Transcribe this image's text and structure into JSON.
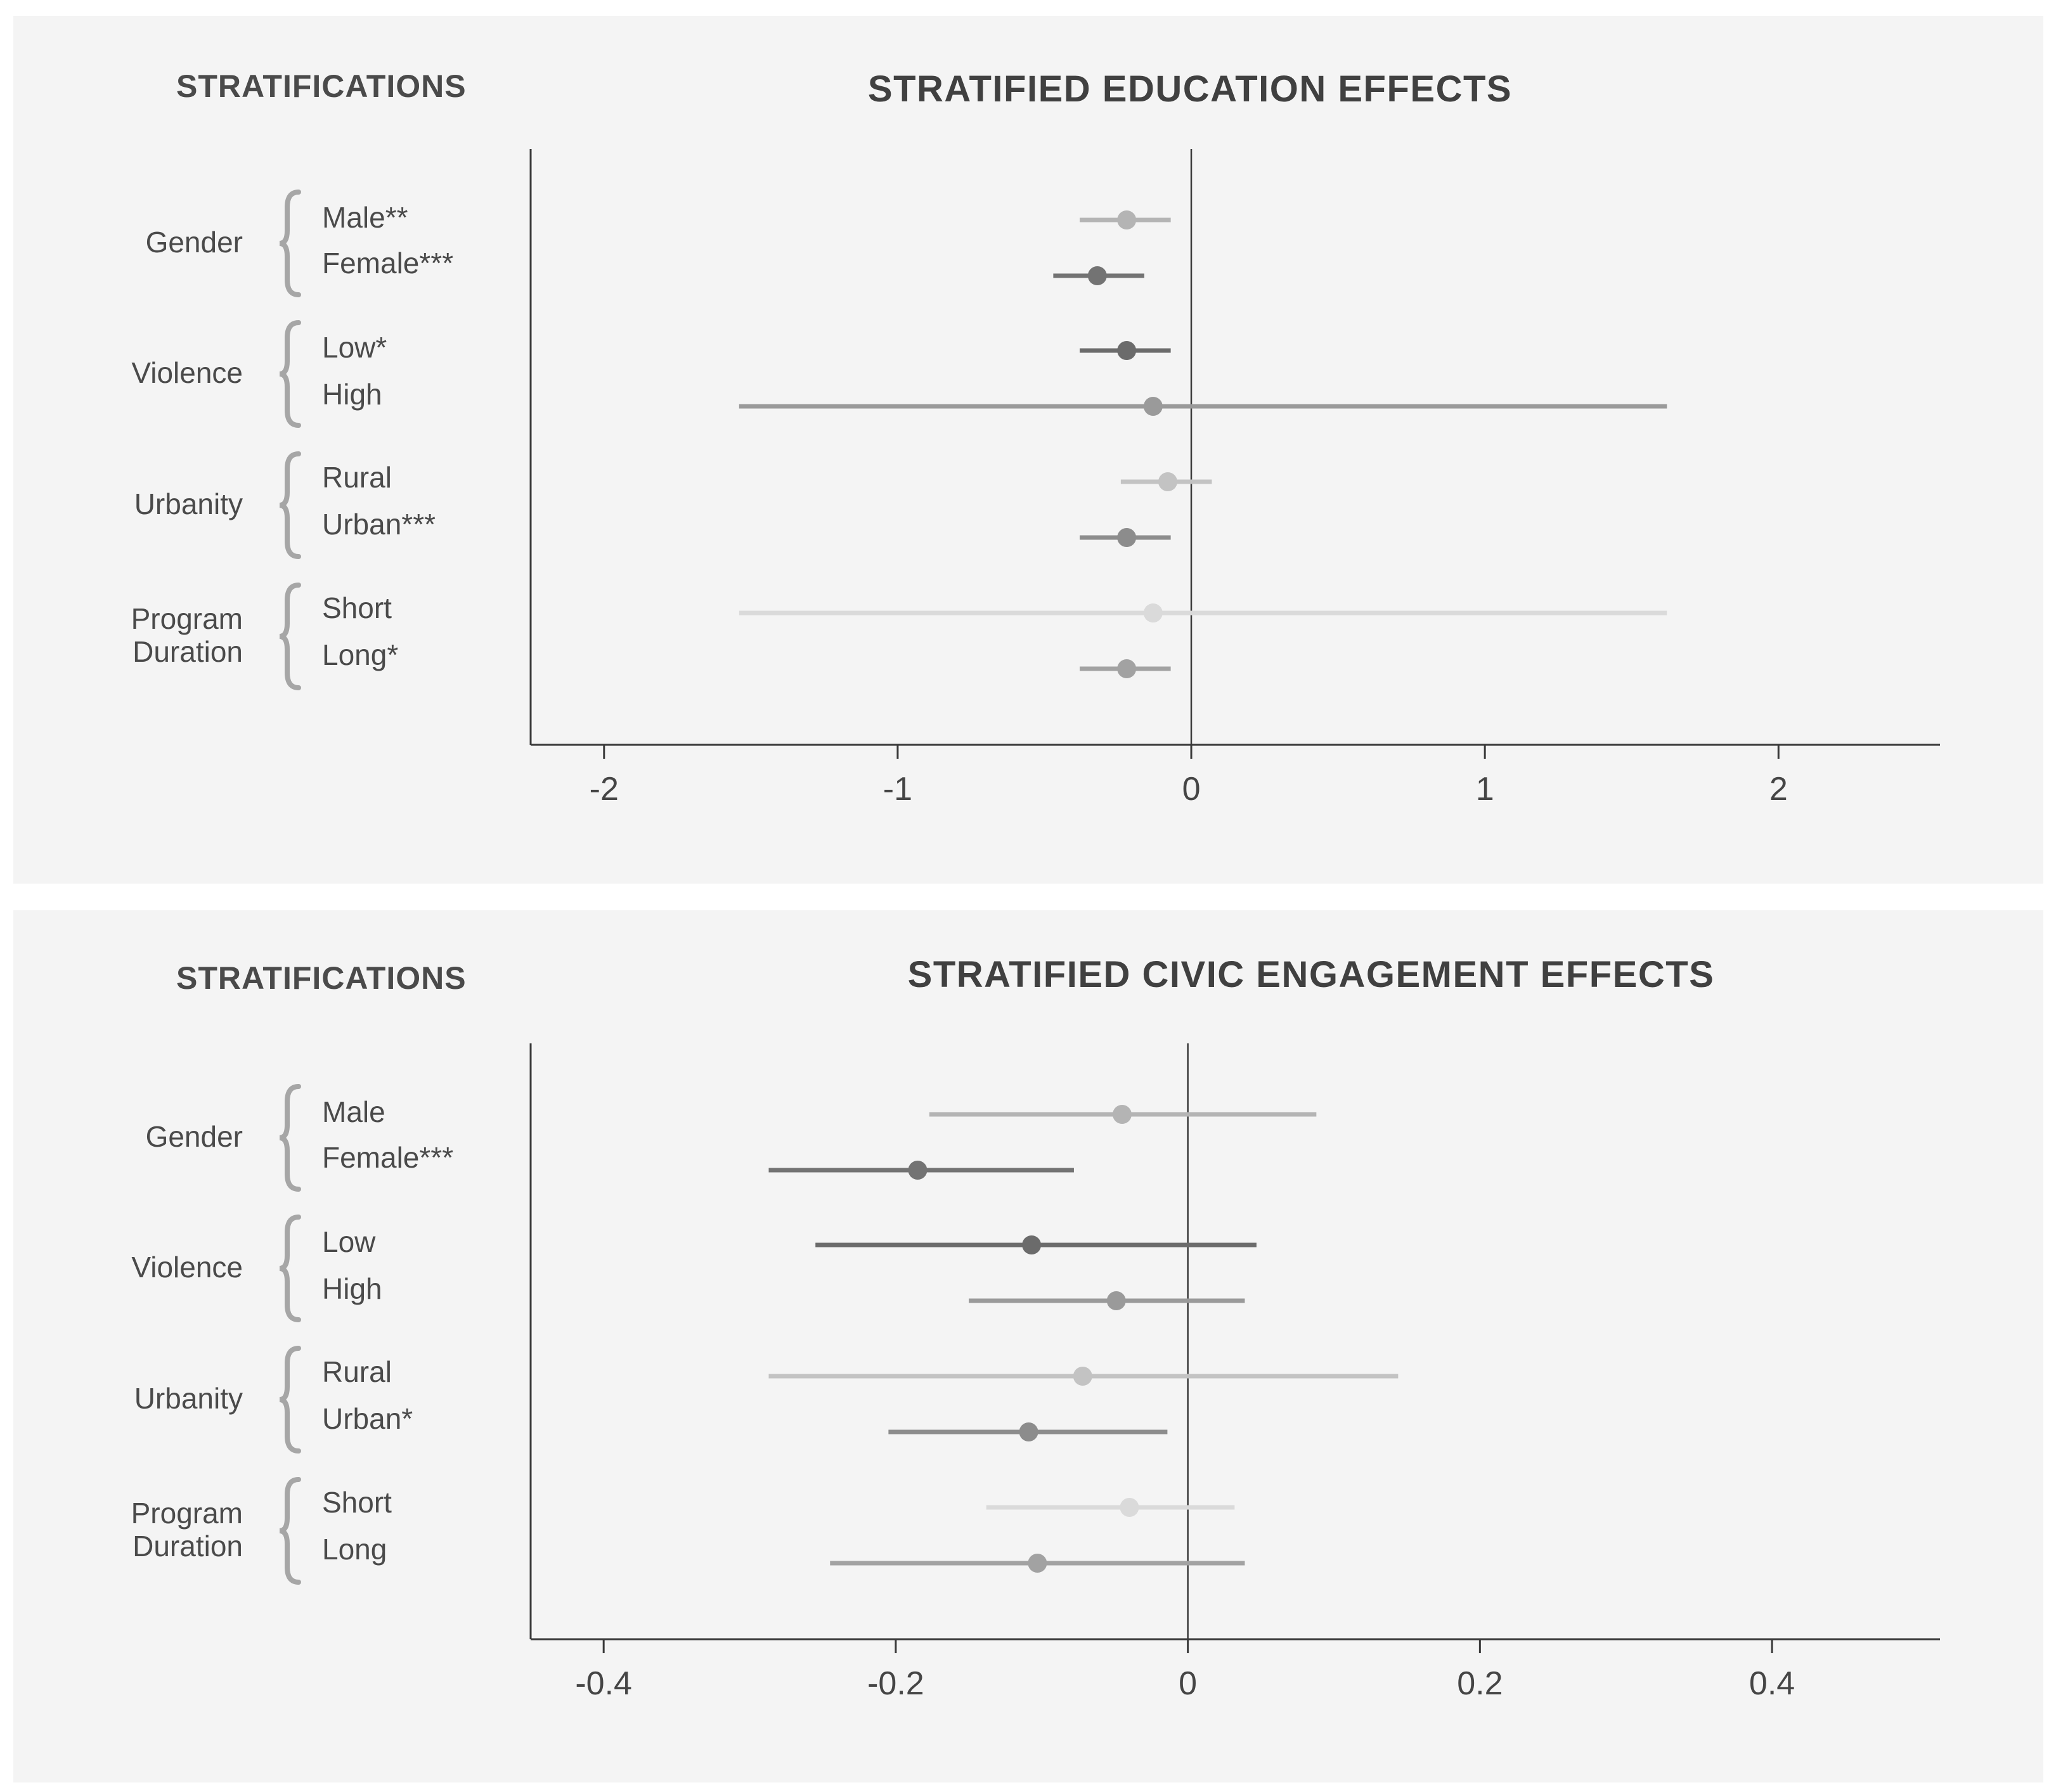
{
  "chart_data": [
    {
      "type": "forest",
      "title": "STRATIFIED EDUCATION EFFECTS",
      "strat_title": "STRATIFICATIONS",
      "xlim": [
        -2.25,
        2.55
      ],
      "ticks": [
        -2,
        -1,
        0,
        1,
        2
      ],
      "tick_labels": [
        "-2",
        "-1",
        "0",
        "1",
        "2"
      ],
      "groups": [
        {
          "name": "Gender",
          "label_lines": [
            "Gender"
          ],
          "rows": [
            {
              "label": "Male**",
              "estimate": -0.22,
              "lower": -0.38,
              "upper": -0.07,
              "color": "#b4b4b4"
            },
            {
              "label": "Female***",
              "estimate": -0.32,
              "lower": -0.47,
              "upper": -0.16,
              "color": "#737373"
            }
          ]
        },
        {
          "name": "Violence",
          "label_lines": [
            "Violence"
          ],
          "rows": [
            {
              "label": "Low*",
              "estimate": -0.22,
              "lower": -0.38,
              "upper": -0.07,
              "color": "#6b6b6b"
            },
            {
              "label": "High",
              "estimate": -0.13,
              "lower": -1.54,
              "upper": 1.62,
              "color": "#9a9a9a"
            }
          ]
        },
        {
          "name": "Urbanity",
          "label_lines": [
            "Urbanity"
          ],
          "rows": [
            {
              "label": "Rural",
              "estimate": -0.08,
              "lower": -0.24,
              "upper": 0.07,
              "color": "#c3c3c3"
            },
            {
              "label": "Urban***",
              "estimate": -0.22,
              "lower": -0.38,
              "upper": -0.07,
              "color": "#8c8c8c"
            }
          ]
        },
        {
          "name": "Program Duration",
          "label_lines": [
            "Program",
            "Duration"
          ],
          "rows": [
            {
              "label": "Short",
              "estimate": -0.13,
              "lower": -1.54,
              "upper": 1.62,
              "color": "#dadada"
            },
            {
              "label": "Long*",
              "estimate": -0.22,
              "lower": -0.38,
              "upper": -0.07,
              "color": "#a2a2a2"
            }
          ]
        }
      ]
    },
    {
      "type": "forest",
      "title": "STRATIFIED CIVIC ENGAGEMENT EFFECTS",
      "strat_title": "STRATIFICATIONS",
      "xlim": [
        -0.45,
        0.515
      ],
      "ticks": [
        -0.4,
        -0.2,
        0,
        0.2,
        0.4
      ],
      "tick_labels": [
        "-0.4",
        "-0.2",
        "0",
        "0.2",
        "0.4"
      ],
      "groups": [
        {
          "name": "Gender",
          "label_lines": [
            "Gender"
          ],
          "rows": [
            {
              "label": "Male",
              "estimate": -0.045,
              "lower": -0.177,
              "upper": 0.088,
              "color": "#b4b4b4"
            },
            {
              "label": "Female***",
              "estimate": -0.185,
              "lower": -0.287,
              "upper": -0.078,
              "color": "#737373"
            }
          ]
        },
        {
          "name": "Violence",
          "label_lines": [
            "Violence"
          ],
          "rows": [
            {
              "label": "Low",
              "estimate": -0.107,
              "lower": -0.255,
              "upper": 0.047,
              "color": "#6b6b6b"
            },
            {
              "label": "High",
              "estimate": -0.049,
              "lower": -0.15,
              "upper": 0.039,
              "color": "#9a9a9a"
            }
          ]
        },
        {
          "name": "Urbanity",
          "label_lines": [
            "Urbanity"
          ],
          "rows": [
            {
              "label": "Rural",
              "estimate": -0.072,
              "lower": -0.287,
              "upper": 0.144,
              "color": "#c3c3c3"
            },
            {
              "label": "Urban*",
              "estimate": -0.109,
              "lower": -0.205,
              "upper": -0.014,
              "color": "#8c8c8c"
            }
          ]
        },
        {
          "name": "Program Duration",
          "label_lines": [
            "Program",
            "Duration"
          ],
          "rows": [
            {
              "label": "Short",
              "estimate": -0.04,
              "lower": -0.138,
              "upper": 0.032,
              "color": "#dadada"
            },
            {
              "label": "Long",
              "estimate": -0.103,
              "lower": -0.245,
              "upper": 0.039,
              "color": "#a2a2a2"
            }
          ]
        }
      ]
    }
  ]
}
